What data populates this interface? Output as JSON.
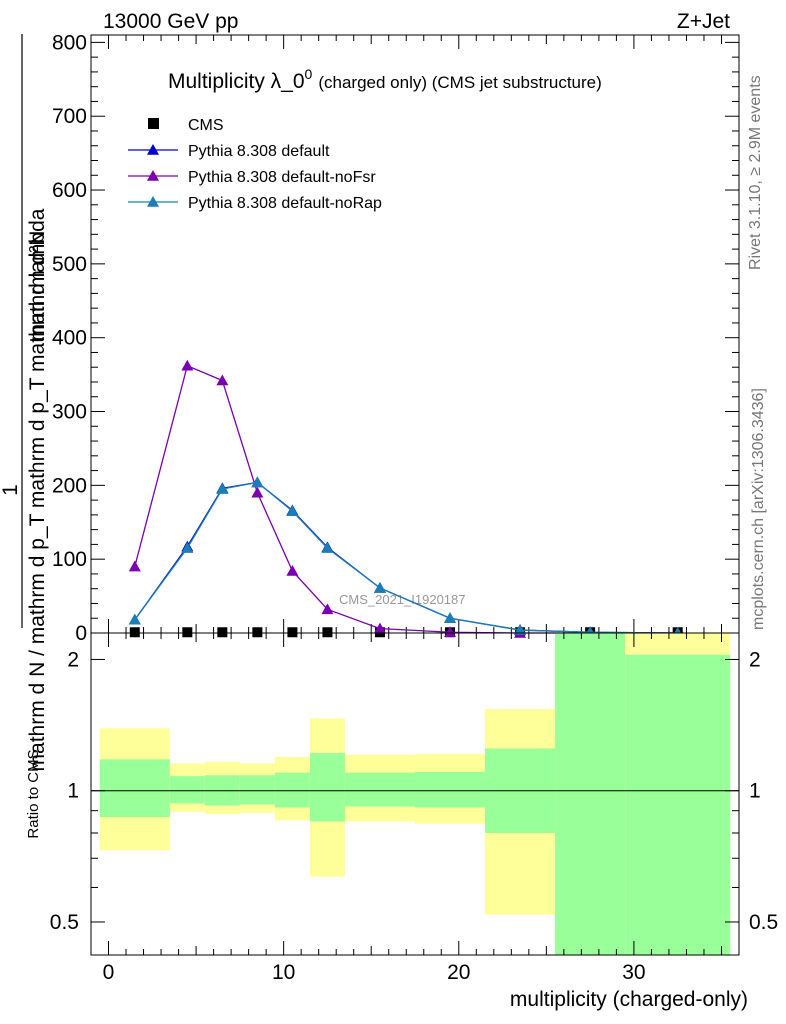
{
  "header": {
    "left": "13000 GeV pp",
    "right": "Z+Jet"
  },
  "side_labels": {
    "rivet": "Rivet 3.1.10, ≥ 2.9M events",
    "mcplots": "mcplots.cern.ch [arXiv:1306.3436]"
  },
  "colors": {
    "cms": "#000000",
    "default": "#0000cc",
    "noFsr": "#7a00b0",
    "noRap": "#1a7fb5",
    "band_inner": "#99ff99",
    "band_outer": "#ffff99"
  },
  "chart_data": [
    {
      "type": "line",
      "title_main": "Multiplicity λ_0",
      "title_sup": "0",
      "title_rest": "(charged only) (CMS jet substructure)",
      "ylabel_top": "mathrm d²N",
      "ylabel_mid": "1",
      "ylabel_bottom": "mathrm d N / mathrm d p_T mathrm d p_T mathrm d lambda",
      "watermark": "CMS_2021_I1920187",
      "xlim": [
        -1,
        36
      ],
      "ylim": [
        0,
        810
      ],
      "yticks": [
        0,
        100,
        200,
        300,
        400,
        500,
        600,
        700,
        800
      ],
      "yticklabels": [
        "0",
        "100",
        "200",
        "300",
        "400",
        "500",
        "600",
        "700",
        "800"
      ],
      "legend_position": "top-left",
      "series": [
        {
          "name": "CMS",
          "marker": "square",
          "x": [
            1.5,
            4.5,
            6.5,
            8.5,
            10.5,
            12.5,
            15.5,
            19.5,
            23.5,
            27.5,
            32.5
          ],
          "y": [
            1,
            1,
            1,
            1,
            1,
            1,
            1,
            1,
            1,
            1,
            1
          ]
        },
        {
          "name": "Pythia 8.308 default",
          "marker": "triangle",
          "x": [
            1.5,
            4.5,
            6.5,
            8.5,
            10.5,
            12.5,
            15.5,
            19.5,
            23.5,
            27.5,
            32.5
          ],
          "y": [
            18,
            117,
            196,
            204,
            166,
            116,
            61,
            20,
            4,
            1,
            0
          ]
        },
        {
          "name": "Pythia 8.308 default-noFsr",
          "marker": "triangle",
          "x": [
            1.5,
            4.5,
            6.5,
            8.5,
            10.5,
            12.5,
            15.5,
            19.5,
            23.5,
            27.5,
            32.5
          ],
          "y": [
            90,
            362,
            342,
            190,
            84,
            32,
            6,
            1,
            0,
            0,
            0
          ]
        },
        {
          "name": "Pythia 8.308 default-noRap",
          "marker": "triangle",
          "x": [
            1.5,
            4.5,
            6.5,
            8.5,
            10.5,
            12.5,
            15.5,
            19.5,
            23.5,
            27.5,
            32.5
          ],
          "y": [
            18,
            115,
            195,
            204,
            165,
            115,
            61,
            20,
            4,
            1,
            0
          ]
        }
      ]
    },
    {
      "type": "area",
      "ylabel": "Ratio to CMS",
      "xlabel": "multiplicity (charged-only)",
      "xlim": [
        -1,
        36
      ],
      "ylim": [
        0.42,
        2.3
      ],
      "ylog": true,
      "xticks": [
        0,
        10,
        20,
        30
      ],
      "xticklabels": [
        "0",
        "10",
        "20",
        "30"
      ],
      "yticks": [
        0.5,
        1,
        2
      ],
      "yticklabels": [
        "0.5",
        "1",
        "2"
      ],
      "bins": [
        {
          "lo": -0.5,
          "hi": 3.5,
          "inner": [
            0.87,
            1.18
          ],
          "outer": [
            0.73,
            1.39
          ]
        },
        {
          "lo": 3.5,
          "hi": 5.5,
          "inner": [
            0.935,
            1.08
          ],
          "outer": [
            0.895,
            1.155
          ]
        },
        {
          "lo": 5.5,
          "hi": 7.5,
          "inner": [
            0.925,
            1.085
          ],
          "outer": [
            0.885,
            1.165
          ]
        },
        {
          "lo": 7.5,
          "hi": 9.5,
          "inner": [
            0.93,
            1.085
          ],
          "outer": [
            0.89,
            1.155
          ]
        },
        {
          "lo": 9.5,
          "hi": 11.5,
          "inner": [
            0.915,
            1.1
          ],
          "outer": [
            0.855,
            1.195
          ]
        },
        {
          "lo": 11.5,
          "hi": 13.5,
          "inner": [
            0.85,
            1.22
          ],
          "outer": [
            0.635,
            1.465
          ]
        },
        {
          "lo": 13.5,
          "hi": 17.5,
          "inner": [
            0.92,
            1.1
          ],
          "outer": [
            0.85,
            1.21
          ]
        },
        {
          "lo": 17.5,
          "hi": 21.5,
          "inner": [
            0.915,
            1.105
          ],
          "outer": [
            0.84,
            1.215
          ]
        },
        {
          "lo": 21.5,
          "hi": 25.5,
          "inner": [
            0.8,
            1.25
          ],
          "outer": [
            0.52,
            1.54
          ]
        },
        {
          "lo": 25.5,
          "hi": 29.5,
          "inner": [
            0.42,
            2.3
          ],
          "outer": [
            0.42,
            2.3
          ]
        },
        {
          "lo": 29.5,
          "hi": 35.5,
          "inner": [
            0.42,
            2.05
          ],
          "outer": [
            0.42,
            2.3
          ]
        }
      ]
    }
  ]
}
